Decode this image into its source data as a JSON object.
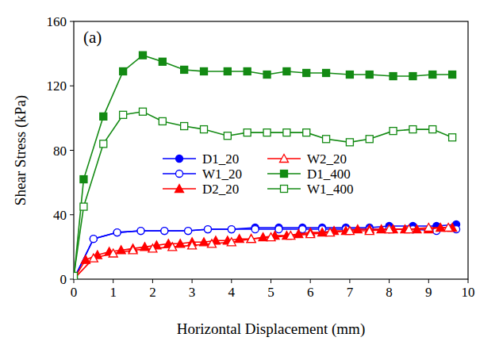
{
  "chart_data": {
    "type": "line",
    "title": "(a)",
    "x_label": "Horizontal Displacement (mm)",
    "y_label": "Shear Stress (kPa)",
    "xlim": [
      0,
      10
    ],
    "ylim": [
      0,
      160
    ],
    "xticks": [
      0,
      1,
      2,
      3,
      4,
      5,
      6,
      7,
      8,
      9,
      10
    ],
    "yticks": [
      0,
      40,
      80,
      120,
      160
    ],
    "grid": false,
    "legend": "center",
    "series": [
      {
        "name": "D1_20",
        "color": "#0000ff",
        "marker": "circle",
        "line_style": "solid",
        "x": [
          0,
          0.5,
          1.1,
          1.7,
          2.3,
          2.9,
          3.4,
          4,
          4.6,
          5.2,
          5.8,
          6.3,
          6.9,
          7.5,
          8,
          8.6,
          9.2,
          9.7
        ],
        "values": [
          0,
          25,
          29,
          30,
          30,
          30,
          31,
          31,
          32,
          32,
          32,
          32,
          32,
          32,
          33,
          33,
          33,
          34
        ]
      },
      {
        "name": "W1_20",
        "color": "#0000ff",
        "marker": "circle-open",
        "line_style": "solid",
        "x": [
          0,
          0.5,
          1.1,
          1.7,
          2.3,
          2.9,
          3.4,
          4,
          4.6,
          5.2,
          5.8,
          6.3,
          6.9,
          7.5,
          8,
          8.6,
          9.2,
          9.7
        ],
        "values": [
          0,
          25,
          29,
          30,
          30,
          30,
          31,
          31,
          31,
          31,
          31,
          31,
          31,
          31,
          31,
          31,
          30,
          31
        ]
      },
      {
        "name": "D2_20",
        "color": "#ff0000",
        "marker": "triangle",
        "line_style": "solid",
        "x": [
          0,
          0.3,
          0.6,
          0.9,
          1.2,
          1.5,
          1.8,
          2.1,
          2.4,
          2.7,
          3,
          3.3,
          3.6,
          3.9,
          4.2,
          4.5,
          4.8,
          5.1,
          5.4,
          5.7,
          6,
          6.3,
          6.6,
          6.9,
          7.2,
          7.5,
          7.8,
          8.1,
          8.4,
          8.7,
          9,
          9.3,
          9.6
        ],
        "values": [
          0,
          12,
          15,
          17,
          18,
          19,
          20,
          21,
          22,
          22,
          23,
          23,
          24,
          24,
          25,
          25,
          26,
          27,
          27,
          28,
          29,
          29,
          30,
          30,
          31,
          31,
          31,
          31,
          31,
          31,
          31,
          32,
          32
        ]
      },
      {
        "name": "W2_20",
        "color": "#ff0000",
        "marker": "triangle-open",
        "line_style": "solid",
        "x": [
          0,
          0.5,
          1,
          1.5,
          2,
          2.5,
          3,
          3.5,
          4,
          4.5,
          5,
          5.5,
          6,
          6.5,
          7,
          7.5,
          8,
          8.5,
          9,
          9.5
        ],
        "values": [
          0,
          13,
          16,
          18,
          19,
          20,
          21,
          22,
          23,
          25,
          26,
          27,
          28,
          29,
          30,
          30,
          31,
          31,
          32,
          32
        ]
      },
      {
        "name": "D1_400",
        "color": "#138a13",
        "marker": "square",
        "line_style": "solid",
        "x": [
          0,
          0.25,
          0.75,
          1.25,
          1.75,
          2.25,
          2.8,
          3.3,
          3.9,
          4.4,
          4.9,
          5.4,
          5.9,
          6.4,
          7,
          7.5,
          8.1,
          8.6,
          9.1,
          9.6
        ],
        "values": [
          0,
          62,
          101,
          129,
          139,
          135,
          130,
          129,
          129,
          129,
          127,
          129,
          128,
          128,
          127,
          127,
          126,
          126,
          127,
          127
        ]
      },
      {
        "name": "W1_400",
        "color": "#138a13",
        "marker": "square-open",
        "line_style": "solid",
        "x": [
          0,
          0.25,
          0.75,
          1.25,
          1.75,
          2.25,
          2.8,
          3.3,
          3.9,
          4.4,
          4.9,
          5.4,
          5.9,
          6.4,
          7,
          7.5,
          8.1,
          8.6,
          9.1,
          9.6
        ],
        "values": [
          2,
          45,
          84,
          102,
          104,
          98,
          95,
          93,
          89,
          91,
          91,
          91,
          91,
          87,
          85,
          87,
          92,
          93,
          93,
          88
        ]
      }
    ]
  }
}
